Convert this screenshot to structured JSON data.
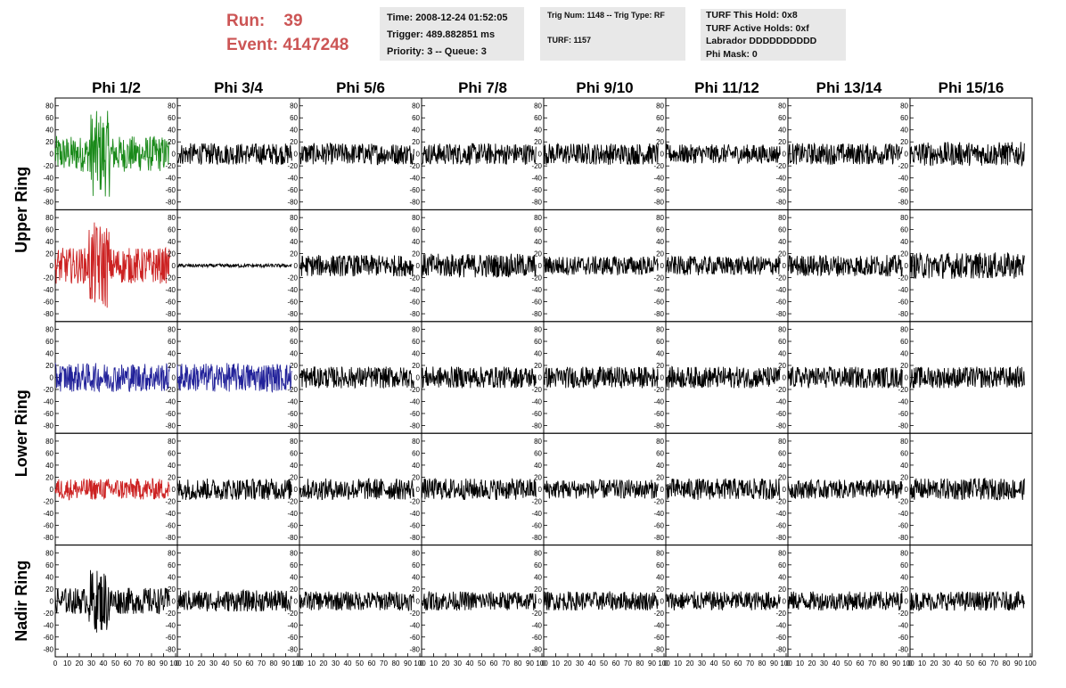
{
  "header": {
    "run_label": "Run:",
    "run_value": "39",
    "event_label": "Event:",
    "event_value": "4147248"
  },
  "info_box_1": {
    "time": "Time: 2008-12-24 01:52:05",
    "trigger": "Trigger: 489.882851 ms",
    "priority": "Priority: 3 -- Queue: 3"
  },
  "info_box_2": {
    "trig": "Trig Num: 1148 -- Trig Type: RF",
    "turf": "TURF: 1157"
  },
  "info_box_3": {
    "hold": "TURF This Hold: 0x8",
    "active": "TURF Active Holds: 0xf",
    "labrador": "Labrador DDDDDDDDDD",
    "phimask": "Phi Mask: 0"
  },
  "colors": {
    "header_text": "#cc5555",
    "info_bg": "#e8e8e8",
    "trace_default": "#000000",
    "trace_green": "#1a8a1a",
    "trace_red": "#cc2222",
    "trace_blue": "#22229a"
  },
  "chart_data": {
    "type": "line",
    "columns": [
      "Phi 1/2",
      "Phi 3/4",
      "Phi 5/6",
      "Phi 7/8",
      "Phi 9/10",
      "Phi 11/12",
      "Phi 13/14",
      "Phi 15/16"
    ],
    "ring_labels": [
      "Upper Ring",
      "Lower Ring",
      "Nadir Ring"
    ],
    "rows": 5,
    "ylim": [
      -90,
      90
    ],
    "xlim": [
      0,
      100
    ],
    "y_ticks": [
      80,
      60,
      40,
      20,
      0,
      -20,
      -40,
      -60,
      -80
    ],
    "x_ticks": [
      0,
      10,
      20,
      30,
      40,
      50,
      60,
      70,
      80,
      90,
      100
    ],
    "panels": [
      [
        "green",
        "black",
        "black",
        "black",
        "black",
        "black",
        "black",
        "black"
      ],
      [
        "red",
        "black",
        "black",
        "black",
        "black",
        "black",
        "black",
        "black"
      ],
      [
        "blue",
        "blue",
        "black",
        "black",
        "black",
        "black",
        "black",
        "black"
      ],
      [
        "red",
        "black",
        "black",
        "black",
        "black",
        "black",
        "black",
        "black"
      ],
      [
        "black",
        "black",
        "black",
        "black",
        "black",
        "black",
        "black",
        "black"
      ]
    ],
    "amplitude": [
      [
        30,
        18,
        18,
        18,
        18,
        16,
        18,
        20
      ],
      [
        30,
        3,
        18,
        20,
        16,
        16,
        18,
        22
      ],
      [
        24,
        24,
        18,
        18,
        18,
        18,
        18,
        18
      ],
      [
        18,
        18,
        18,
        18,
        16,
        18,
        16,
        18
      ],
      [
        22,
        18,
        16,
        16,
        16,
        16,
        16,
        16
      ]
    ]
  }
}
